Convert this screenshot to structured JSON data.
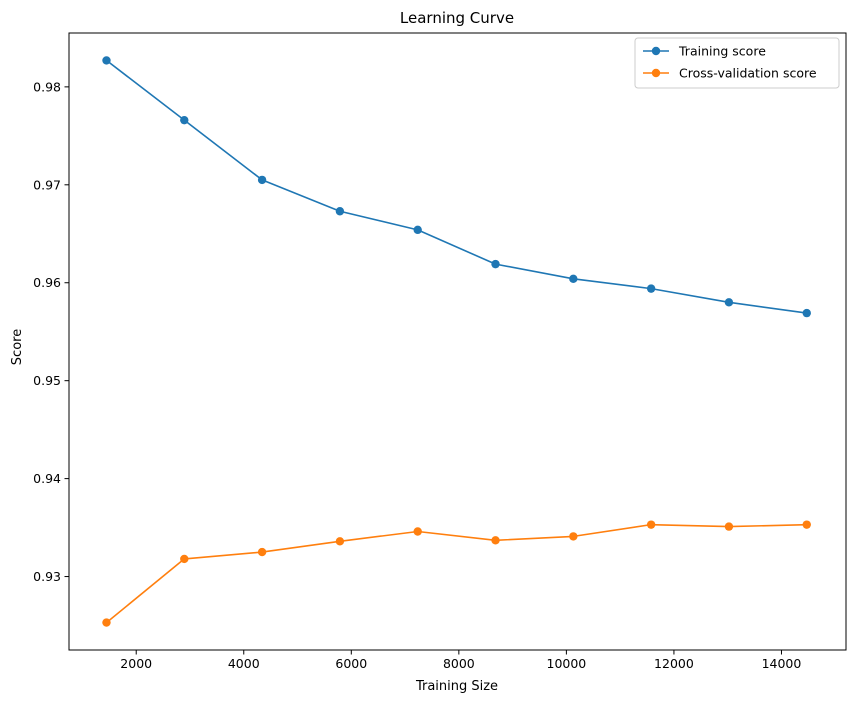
{
  "chart_data": {
    "type": "line",
    "title": "Learning Curve",
    "xlabel": "Training Size",
    "ylabel": "Score",
    "xlim": [
      750,
      15200
    ],
    "ylim": [
      0.9225,
      0.9855
    ],
    "xticks": [
      2000,
      4000,
      6000,
      8000,
      10000,
      12000,
      14000
    ],
    "xtick_labels": [
      "2000",
      "4000",
      "6000",
      "8000",
      "10000",
      "12000",
      "14000"
    ],
    "yticks": [
      0.93,
      0.94,
      0.95,
      0.96,
      0.97,
      0.98
    ],
    "ytick_labels": [
      "0.93",
      "0.94",
      "0.95",
      "0.96",
      "0.97",
      "0.98"
    ],
    "grid": false,
    "legend_position": "top-right",
    "x": [
      1447,
      2894,
      4341,
      5788,
      7235,
      8682,
      10129,
      11576,
      13023,
      14470
    ],
    "series": [
      {
        "name": "Training score",
        "color": "#1f77b4",
        "values": [
          0.9827,
          0.9766,
          0.9705,
          0.9673,
          0.9654,
          0.9619,
          0.9604,
          0.9594,
          0.958,
          0.9569
        ]
      },
      {
        "name": "Cross-validation score",
        "color": "#ff7f0e",
        "values": [
          0.9253,
          0.9318,
          0.9325,
          0.9336,
          0.9346,
          0.9337,
          0.9341,
          0.9353,
          0.9351,
          0.9353
        ]
      }
    ]
  }
}
